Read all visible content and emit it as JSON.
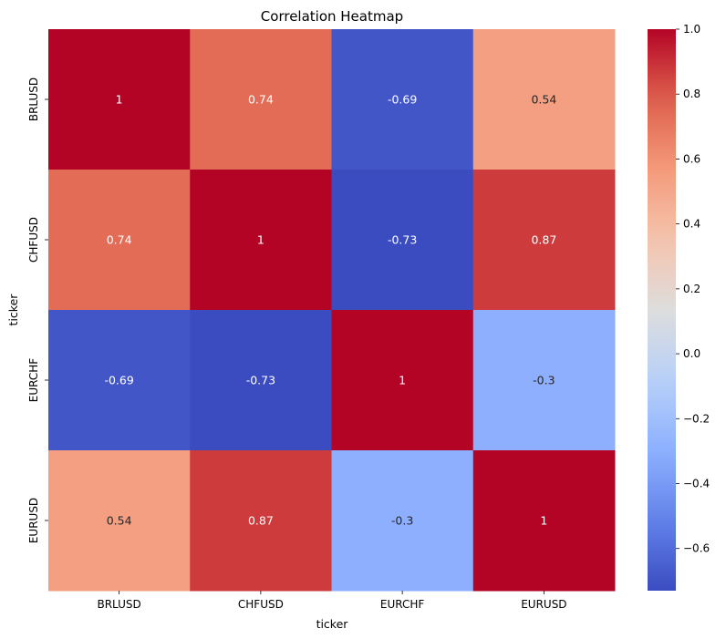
{
  "chart_data": {
    "type": "heatmap",
    "title": "Correlation Heatmap",
    "xlabel": "ticker",
    "ylabel": "ticker",
    "x_categories": [
      "BRLUSD",
      "CHFUSD",
      "EURCHF",
      "EURUSD"
    ],
    "y_categories": [
      "BRLUSD",
      "CHFUSD",
      "EURCHF",
      "EURUSD"
    ],
    "values": [
      [
        1,
        0.74,
        -0.69,
        0.54
      ],
      [
        0.74,
        1,
        -0.73,
        0.87
      ],
      [
        -0.69,
        -0.73,
        1,
        -0.3
      ],
      [
        0.54,
        0.87,
        -0.3,
        1
      ]
    ],
    "annotations": [
      [
        "1",
        "0.74",
        "-0.69",
        "0.54"
      ],
      [
        "0.74",
        "1",
        "-0.73",
        "0.87"
      ],
      [
        "-0.69",
        "-0.73",
        "1",
        "-0.3"
      ],
      [
        "0.54",
        "0.87",
        "-0.3",
        "1"
      ]
    ],
    "colormap": "coolwarm",
    "colorbar": {
      "vmin": -0.73,
      "vmax": 1.0,
      "ticks": [
        1.0,
        0.8,
        0.6,
        0.4,
        0.2,
        0.0,
        -0.2,
        -0.4,
        -0.6
      ],
      "tick_labels": [
        "1.0",
        "0.8",
        "0.6",
        "0.4",
        "0.2",
        "0.0",
        "−0.2",
        "−0.4",
        "−0.6"
      ]
    }
  }
}
